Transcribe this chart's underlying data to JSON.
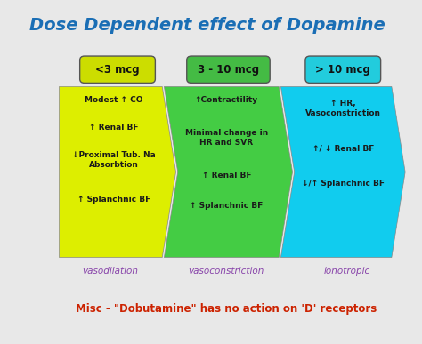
{
  "title": "Dose Dependent effect of Dopamine",
  "title_color": "#1a6eb5",
  "title_fontsize": 14,
  "background_color": "#e8e8e8",
  "box_labels": [
    "<3 mcg",
    "3 - 10 mcg",
    "> 10 mcg"
  ],
  "box_label_colors": [
    "#ccdd00",
    "#44bb44",
    "#22ccdd"
  ],
  "box_label_text_colors": [
    "#333333",
    "#333333",
    "#333333"
  ],
  "arrow_colors": [
    "#ddee00",
    "#44cc44",
    "#11ccee"
  ],
  "col1_lines": [
    "Modest ↑ CO",
    "↑ Renal BF",
    "↓Proximal Tub. Na\nAbsorbtion",
    "↑ Splanchnic BF"
  ],
  "col2_lines": [
    "↑Contractility",
    "Minimal change in\nHR and SVR",
    "↑ Renal BF",
    "↑ Splanchnic BF"
  ],
  "col3_lines": [
    "↑ HR,\nVasoconstriction",
    "↑/ ↓ Renal BF",
    "↓/↑ Splanchnic BF"
  ],
  "col1_color": "#ddee00",
  "col2_color": "#44cc44",
  "col3_color": "#11ccee",
  "sub_labels": [
    "vasodilation",
    "vasoconstriction",
    "ionotropic"
  ],
  "sub_label_color": "#8844aa",
  "misc_text": "Misc - \"Dobutamine\" has no action on 'D' receptors",
  "misc_color": "#cc2200"
}
